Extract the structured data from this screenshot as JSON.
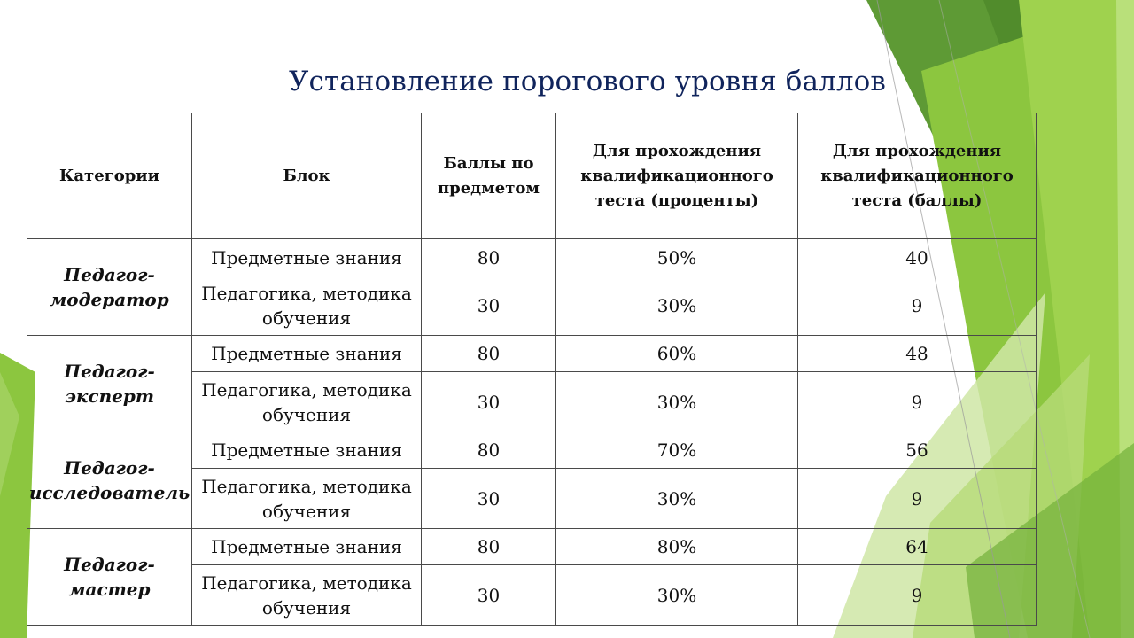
{
  "title": "Установление порогового уровня баллов",
  "table": {
    "headers": [
      "Категории",
      "Блок",
      "Баллы по предметом",
      "Для прохождения квалификационного теста (проценты)",
      "Для прохождения квалификационного теста (баллы)"
    ],
    "groups": [
      {
        "category": "Педагог-модератор",
        "rows": [
          {
            "block": "Предметные знания",
            "points": "80",
            "percent": "50%",
            "score": "40"
          },
          {
            "block": "Педагогика, методика обучения",
            "points": "30",
            "percent": "30%",
            "score": "9"
          }
        ]
      },
      {
        "category": "Педагог-эксперт",
        "rows": [
          {
            "block": "Предметные знания",
            "points": "80",
            "percent": "60%",
            "score": "48"
          },
          {
            "block": "Педагогика, методика обучения",
            "points": "30",
            "percent": "30%",
            "score": "9"
          }
        ]
      },
      {
        "category": "Педагог-исследователь",
        "rows": [
          {
            "block": "Предметные знания",
            "points": "80",
            "percent": "70%",
            "score": "56"
          },
          {
            "block": "Педагогика, методика обучения",
            "points": "30",
            "percent": "30%",
            "score": "9"
          }
        ]
      },
      {
        "category": "Педагог-мастер",
        "rows": [
          {
            "block": "Предметные знания",
            "points": "80",
            "percent": "80%",
            "score": "64"
          },
          {
            "block": "Педагогика, методика обучения",
            "points": "30",
            "percent": "30%",
            "score": "9"
          }
        ]
      }
    ]
  },
  "colors": {
    "title": "#10245c",
    "accent_dark_green": "#5a9a30",
    "accent_light_green": "#9bcd42",
    "accent_pale_green": "#cfe6a6"
  }
}
